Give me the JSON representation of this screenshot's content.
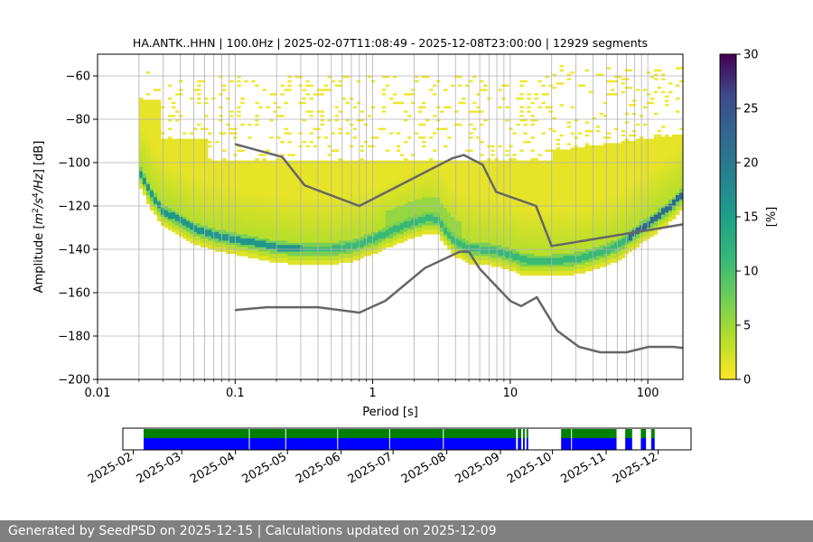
{
  "chart_data": [
    {
      "type": "heatmap",
      "title": "HA.ANTK..HHN | 100.0Hz | 2025-02-07T11:08:49 - 2025-12-08T23:00:00 | 12929 segments",
      "xlabel": "Period [s]",
      "ylabel": "Amplitude [m²/s⁴/Hz] [dB]",
      "ylabel_prefix": "Amplitude [",
      "ylabel_unit_m": "m",
      "ylabel_sup_2": "2",
      "ylabel_unit_s": "/s",
      "ylabel_sup_4": "4",
      "ylabel_unit_hz": "/Hz",
      "ylabel_suffix": "] [dB]",
      "xscale": "log",
      "xlim": [
        0.01,
        180
      ],
      "ylim": [
        -200,
        -50
      ],
      "xticks": [
        0.01,
        0.1,
        1,
        10,
        100
      ],
      "xtick_labels": [
        "0.01",
        "0.1",
        "1",
        "10",
        "100"
      ],
      "yticks": [
        -200,
        -180,
        -160,
        -140,
        -120,
        -100,
        -80,
        -60
      ],
      "ytick_labels": [
        "−200",
        "−180",
        "−160",
        "−140",
        "−120",
        "−100",
        "−80",
        "−60"
      ],
      "grid": true,
      "mode_curve": {
        "periods": [
          0.02,
          0.025,
          0.03,
          0.04,
          0.05,
          0.07,
          0.1,
          0.15,
          0.2,
          0.3,
          0.5,
          0.7,
          1.0,
          1.5,
          2.0,
          2.5,
          3.0,
          3.5,
          4.0,
          5.0,
          6.0,
          7.0,
          8.0,
          10,
          12,
          15,
          20,
          30,
          40,
          50,
          60,
          70,
          80,
          100,
          120,
          150,
          180
        ],
        "db": [
          -104,
          -116,
          -123,
          -127,
          -131,
          -134,
          -136,
          -138,
          -139.5,
          -140.5,
          -140.5,
          -139,
          -136,
          -131,
          -128,
          -126,
          -127,
          -133,
          -137,
          -140,
          -140.5,
          -141,
          -141.5,
          -143,
          -145,
          -146,
          -146,
          -145,
          -143,
          -141,
          -139,
          -136,
          -133,
          -129,
          -125,
          -120,
          -115
        ]
      },
      "nhnm": {
        "name": "New High Noise Model",
        "periods": [
          0.1,
          0.22,
          0.32,
          0.8,
          3.8,
          4.6,
          6.3,
          7.9,
          15.4,
          20,
          180
        ],
        "db": [
          -91.5,
          -97.4,
          -110.5,
          -120,
          -98,
          -96.5,
          -101,
          -113.5,
          -120,
          -138.5,
          -128.5
        ]
      },
      "nlnm": {
        "name": "New Low Noise Model",
        "periods": [
          0.1,
          0.17,
          0.4,
          0.8,
          1.24,
          2.4,
          4.3,
          5,
          6,
          10,
          12,
          15.6,
          21.9,
          31.6,
          45,
          70,
          101,
          154,
          180
        ],
        "db": [
          -168,
          -166.7,
          -166.7,
          -169.2,
          -163.7,
          -148.6,
          -141.1,
          -141.1,
          -149,
          -163.8,
          -166.2,
          -162.1,
          -177.5,
          -185,
          -187.5,
          -187.5,
          -185,
          -185,
          -185.5
        ]
      },
      "colorbar": {
        "label": "[%]",
        "min": 0,
        "max": 30,
        "ticks": [
          0,
          5,
          10,
          15,
          20,
          25,
          30
        ],
        "tick_labels": [
          "0",
          "5",
          "10",
          "15",
          "20",
          "25",
          "30"
        ],
        "colormap": "viridis_r"
      }
    },
    {
      "type": "timeline",
      "xlabel_ticks": [
        "2025-02",
        "2025-03",
        "2025-04",
        "2025-05",
        "2025-06",
        "2025-07",
        "2025-08",
        "2025-09",
        "2025-10",
        "2025-11",
        "2025-12"
      ],
      "tick_dates": [
        "2025-02-01",
        "2025-03-01",
        "2025-04-01",
        "2025-05-01",
        "2025-06-01",
        "2025-07-01",
        "2025-08-01",
        "2025-09-01",
        "2025-10-01",
        "2025-11-01",
        "2025-12-01"
      ],
      "xlim": [
        "2025-01-26",
        "2025-12-20"
      ],
      "series": [
        {
          "name": "data availability",
          "color": "#008000",
          "intervals": [
            [
              "2025-02-07",
              "2025-09-10"
            ],
            [
              "2025-09-11",
              "2025-09-13"
            ],
            [
              "2025-09-14",
              "2025-09-15"
            ],
            [
              "2025-09-16",
              "2025-09-17"
            ],
            [
              "2025-10-06",
              "2025-11-07"
            ],
            [
              "2025-11-12",
              "2025-11-16"
            ],
            [
              "2025-11-21",
              "2025-11-24"
            ],
            [
              "2025-11-27",
              "2025-11-29"
            ]
          ]
        },
        {
          "name": "calculated psd",
          "color": "#0000ff",
          "intervals": [
            [
              "2025-02-07",
              "2025-09-10"
            ],
            [
              "2025-09-11",
              "2025-09-13"
            ],
            [
              "2025-09-14",
              "2025-09-15"
            ],
            [
              "2025-09-16",
              "2025-09-17"
            ],
            [
              "2025-10-06",
              "2025-11-07"
            ],
            [
              "2025-11-12",
              "2025-11-16"
            ],
            [
              "2025-11-21",
              "2025-11-24"
            ],
            [
              "2025-11-27",
              "2025-11-29"
            ]
          ]
        }
      ],
      "gap_dates": [
        "2025-04-09",
        "2025-04-30",
        "2025-05-30",
        "2025-06-29",
        "2025-07-30",
        "2025-10-12"
      ]
    }
  ],
  "footer": {
    "text": "Generated by SeedPSD on 2025-12-15 | Calculations updated on 2025-12-09"
  }
}
